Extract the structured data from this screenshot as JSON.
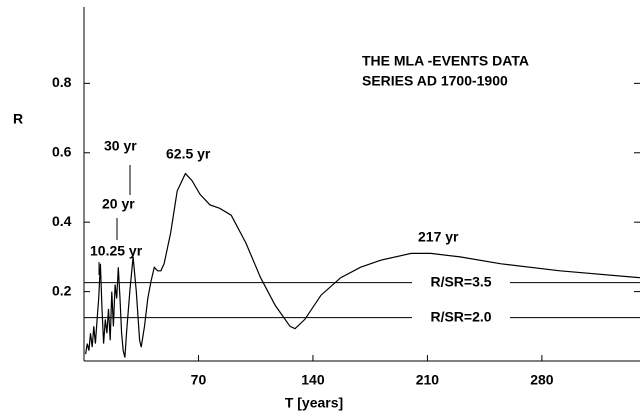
{
  "chart_data": {
    "type": "line",
    "title_lines": [
      "THE MLA -EVENTS DATA",
      "SERIES AD 1700-1900"
    ],
    "x_label": "T [years]",
    "y_label": "R",
    "xlim": [
      0,
      340
    ],
    "ylim": [
      0,
      1.02
    ],
    "xticks": [
      70,
      140,
      210,
      280
    ],
    "yticks": [
      0.2,
      0.4,
      0.6,
      0.8
    ],
    "color": "#000000",
    "x": [
      1,
      2,
      3,
      4,
      5,
      6,
      7,
      8,
      9,
      10,
      11,
      12,
      13,
      14,
      15,
      16,
      17,
      18,
      19,
      20,
      21,
      22,
      23,
      24,
      25,
      26,
      28,
      30,
      32,
      34,
      35,
      37,
      39,
      41,
      43,
      45,
      47,
      49,
      53,
      57,
      62,
      66,
      71,
      77,
      83,
      90,
      99,
      108,
      117,
      126,
      129,
      135,
      145,
      157,
      169,
      181,
      200,
      212,
      230,
      255,
      291,
      340
    ],
    "values": [
      0.02,
      0.05,
      0.03,
      0.08,
      0.04,
      0.1,
      0.05,
      0.12,
      0.18,
      0.28,
      0.15,
      0.05,
      0.12,
      0.08,
      0.15,
      0.06,
      0.2,
      0.1,
      0.22,
      0.18,
      0.27,
      0.18,
      0.08,
      0.03,
      0.01,
      0.08,
      0.2,
      0.3,
      0.2,
      0.06,
      0.04,
      0.1,
      0.18,
      0.23,
      0.27,
      0.26,
      0.26,
      0.28,
      0.37,
      0.49,
      0.54,
      0.52,
      0.48,
      0.45,
      0.44,
      0.42,
      0.34,
      0.24,
      0.16,
      0.1,
      0.093,
      0.12,
      0.19,
      0.24,
      0.27,
      0.29,
      0.31,
      0.31,
      0.3,
      0.28,
      0.26,
      0.24
    ],
    "reference_lines": [
      {
        "value": 0.226,
        "label": "R/SR=3.5"
      },
      {
        "value": 0.125,
        "label": "R/SR=2.0"
      }
    ],
    "annotations": [
      "10.25 yr",
      "20 yr",
      "30 yr",
      "62.5 yr",
      "217 yr"
    ]
  }
}
